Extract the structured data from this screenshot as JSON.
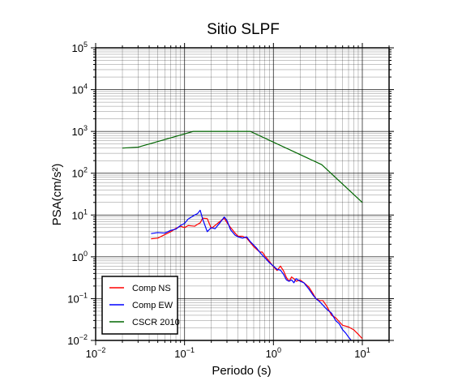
{
  "chart_data": {
    "type": "line",
    "title": "Sitio SLPF",
    "xlabel": "Periodo (s)",
    "ylabel": "PSA(cm/s²)",
    "xscale": "log",
    "yscale": "log",
    "xlim": [
      0.01,
      20
    ],
    "ylim": [
      0.01,
      100000
    ],
    "grid": true,
    "legend_position": "bottom-left",
    "xticks": [
      {
        "mantissa": "10",
        "exp": "−2"
      },
      {
        "mantissa": "10",
        "exp": "−1"
      },
      {
        "mantissa": "10",
        "exp": "0"
      },
      {
        "mantissa": "10",
        "exp": "1"
      }
    ],
    "yticks": [
      {
        "mantissa": "10",
        "exp": "−2"
      },
      {
        "mantissa": "10",
        "exp": "−1"
      },
      {
        "mantissa": "10",
        "exp": "0"
      },
      {
        "mantissa": "10",
        "exp": "1"
      },
      {
        "mantissa": "10",
        "exp": "2"
      },
      {
        "mantissa": "10",
        "exp": "3"
      },
      {
        "mantissa": "10",
        "exp": "4"
      },
      {
        "mantissa": "10",
        "exp": "5"
      }
    ],
    "series": [
      {
        "name": "Comp NS",
        "color": "#ff0000",
        "x": [
          0.042,
          0.05,
          0.06,
          0.07,
          0.08,
          0.09,
          0.1,
          0.11,
          0.12,
          0.13,
          0.14,
          0.15,
          0.16,
          0.18,
          0.2,
          0.22,
          0.25,
          0.28,
          0.3,
          0.33,
          0.37,
          0.4,
          0.45,
          0.5,
          0.55,
          0.6,
          0.65,
          0.7,
          0.75,
          0.8,
          0.9,
          1.0,
          1.1,
          1.2,
          1.3,
          1.4,
          1.5,
          1.6,
          1.7,
          1.8,
          2.0,
          2.2,
          2.5,
          2.8,
          3.0,
          3.3,
          3.6,
          4.0,
          4.5,
          5.0,
          6.0,
          7.0,
          8.0,
          9.0,
          10.0
        ],
        "y": [
          2.7,
          2.8,
          3.4,
          4.0,
          4.8,
          5.4,
          5.0,
          5.6,
          5.5,
          5.4,
          6.0,
          6.5,
          8.4,
          8.2,
          4.8,
          5.6,
          7.0,
          8.3,
          6.6,
          5.0,
          3.7,
          3.1,
          3.1,
          2.8,
          2.2,
          1.75,
          1.5,
          1.3,
          1.3,
          1.05,
          0.78,
          0.58,
          0.47,
          0.6,
          0.46,
          0.32,
          0.26,
          0.33,
          0.3,
          0.26,
          0.28,
          0.24,
          0.19,
          0.13,
          0.1,
          0.09,
          0.09,
          0.065,
          0.04,
          0.035,
          0.023,
          0.021,
          0.018,
          0.014,
          0.011
        ]
      },
      {
        "name": "Comp EW",
        "color": "#0000ff",
        "x": [
          0.042,
          0.05,
          0.06,
          0.07,
          0.08,
          0.09,
          0.1,
          0.11,
          0.12,
          0.13,
          0.14,
          0.15,
          0.16,
          0.18,
          0.2,
          0.22,
          0.25,
          0.28,
          0.3,
          0.33,
          0.37,
          0.4,
          0.45,
          0.5,
          0.55,
          0.6,
          0.65,
          0.7,
          0.75,
          0.8,
          0.9,
          1.0,
          1.1,
          1.2,
          1.3,
          1.4,
          1.5,
          1.6,
          1.7,
          1.8,
          2.0,
          2.2,
          2.5,
          2.8,
          3.0,
          3.3,
          3.6,
          4.0,
          4.5,
          5.0,
          5.5,
          6.0,
          6.5,
          7.0,
          7.5
        ],
        "y": [
          3.6,
          3.8,
          3.7,
          4.3,
          4.6,
          5.6,
          6.3,
          8.0,
          9.0,
          10.0,
          10.8,
          13.0,
          8.0,
          4.0,
          5.0,
          4.7,
          6.5,
          9.0,
          7.4,
          4.4,
          3.3,
          3.0,
          2.8,
          3.0,
          2.3,
          1.9,
          1.6,
          1.3,
          1.1,
          0.95,
          0.73,
          0.6,
          0.5,
          0.48,
          0.38,
          0.28,
          0.26,
          0.28,
          0.24,
          0.3,
          0.26,
          0.24,
          0.17,
          0.12,
          0.1,
          0.085,
          0.07,
          0.055,
          0.045,
          0.03,
          0.025,
          0.018,
          0.015,
          0.012,
          0.01
        ]
      },
      {
        "name": "CSCR 2010",
        "color": "#006600",
        "x": [
          0.02,
          0.03,
          0.125,
          0.55,
          3.5,
          10.0
        ],
        "y": [
          400,
          420,
          1000,
          1000,
          160,
          20
        ]
      }
    ]
  }
}
